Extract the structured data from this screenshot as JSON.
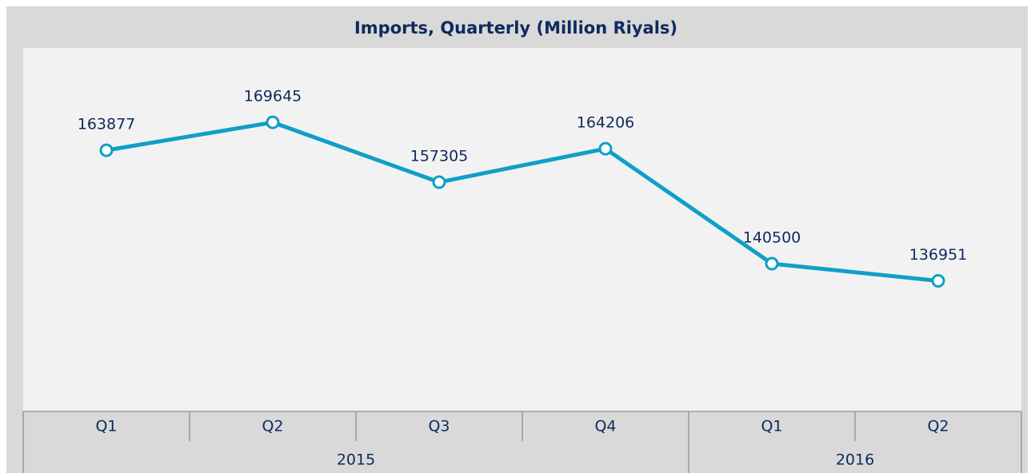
{
  "chart_data": {
    "type": "line",
    "title": "Imports, Quarterly (Million Riyals)",
    "groups": [
      {
        "name": "2015",
        "categories": [
          "Q1",
          "Q2",
          "Q3",
          "Q4"
        ]
      },
      {
        "name": "2016",
        "categories": [
          "Q1",
          "Q2"
        ]
      }
    ],
    "values": [
      163877,
      169645,
      157305,
      164206,
      140500,
      136951
    ],
    "color": "#109fc8",
    "ylim": [
      110000,
      185000
    ]
  }
}
